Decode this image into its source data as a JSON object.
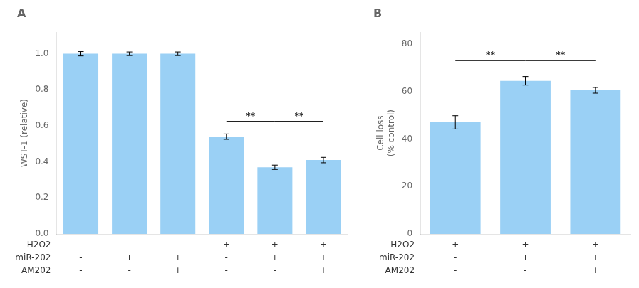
{
  "chart_data": [
    {
      "type": "bar",
      "title": "A",
      "categories": [
        null,
        null,
        null,
        null,
        null,
        null
      ],
      "values": [
        1.0,
        1.0,
        1.0,
        0.54,
        0.37,
        0.41
      ],
      "errors": [
        0.012,
        0.01,
        0.01,
        0.015,
        0.012,
        0.015
      ],
      "ylabel": "WST-1 (relative)",
      "ylim": [
        0,
        1.12
      ],
      "yticks": [
        {
          "value": 0.0,
          "label": "0.0"
        },
        0.2,
        0.4,
        0.6,
        0.8,
        {
          "value": 1.0,
          "label": "1.0"
        }
      ],
      "grid": false,
      "tick_labels": "y",
      "conditions": [
        {
          "label": "H2O2",
          "marks": [
            "-",
            "-",
            "-",
            "+",
            "+",
            "+"
          ]
        },
        {
          "label": "miR-202",
          "marks": [
            "-",
            "+",
            "+",
            "-",
            "+",
            "+"
          ]
        },
        {
          "label": "AM202",
          "marks": [
            "-",
            "-",
            "+",
            "-",
            "-",
            "+"
          ]
        }
      ],
      "annotations": [
        {
          "from": 3,
          "to": 4,
          "y": 0.625,
          "label": "**"
        },
        {
          "from": 4,
          "to": 5,
          "y": 0.625,
          "label": "**"
        }
      ]
    },
    {
      "type": "bar",
      "title": "B",
      "categories": [
        null,
        null,
        null
      ],
      "values": [
        47.0,
        64.5,
        60.5
      ],
      "errors": [
        2.8,
        1.8,
        1.2
      ],
      "ylabel": "Cell loss\n(% control)",
      "ylim": [
        0,
        85
      ],
      "yticks": [
        0,
        20,
        40,
        60,
        80
      ],
      "grid": false,
      "tick_labels": "y",
      "conditions": [
        {
          "label": "H2O2",
          "marks": [
            "+",
            "+",
            "+"
          ]
        },
        {
          "label": "miR-202",
          "marks": [
            "-",
            "+",
            "+"
          ]
        },
        {
          "label": "AM202",
          "marks": [
            "-",
            "-",
            "+"
          ]
        }
      ],
      "annotations": [
        {
          "from": 0,
          "to": 1,
          "y": 73,
          "label": "**"
        },
        {
          "from": 1,
          "to": 2,
          "y": 73,
          "label": "**"
        }
      ]
    }
  ]
}
